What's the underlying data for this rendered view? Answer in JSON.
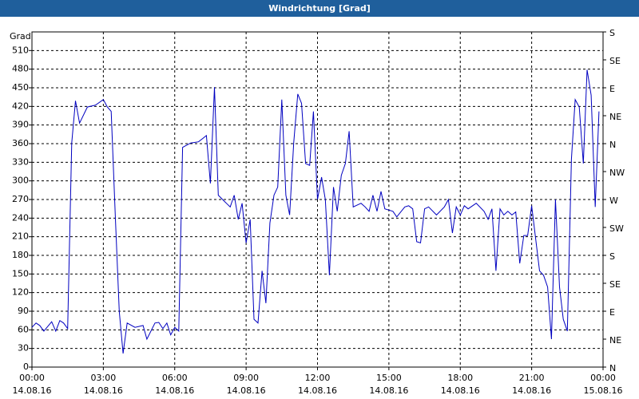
{
  "chart_data": {
    "type": "line",
    "title": "Windrichtung [Grad]",
    "y_label": "Grad",
    "x": [
      0,
      0.17,
      0.33,
      0.5,
      0.83,
      1.0,
      1.17,
      1.33,
      1.5,
      1.67,
      1.83,
      2.0,
      2.33,
      2.67,
      3.0,
      3.17,
      3.33,
      3.5,
      3.67,
      3.83,
      4.0,
      4.33,
      4.67,
      4.83,
      5.17,
      5.33,
      5.5,
      5.67,
      5.83,
      6.0,
      6.17,
      6.33,
      6.67,
      7.0,
      7.33,
      7.5,
      7.67,
      7.83,
      8.17,
      8.33,
      8.5,
      8.67,
      8.83,
      9.0,
      9.17,
      9.33,
      9.5,
      9.67,
      9.83,
      10.0,
      10.17,
      10.33,
      10.5,
      10.67,
      10.83,
      11.0,
      11.17,
      11.33,
      11.5,
      11.67,
      11.83,
      12.0,
      12.17,
      12.33,
      12.5,
      12.67,
      12.83,
      13.0,
      13.17,
      13.33,
      13.5,
      13.83,
      14.0,
      14.17,
      14.33,
      14.5,
      14.67,
      14.83,
      15.17,
      15.33,
      15.67,
      15.83,
      16.0,
      16.17,
      16.33,
      16.5,
      16.67,
      17.0,
      17.33,
      17.5,
      17.67,
      17.83,
      18.0,
      18.17,
      18.33,
      18.67,
      19.0,
      19.17,
      19.33,
      19.5,
      19.67,
      19.83,
      20.0,
      20.17,
      20.33,
      20.5,
      20.67,
      20.83,
      21.0,
      21.33,
      21.5,
      21.67,
      21.83,
      22.0,
      22.17,
      22.33,
      22.5,
      22.67,
      22.83,
      23.0,
      23.17,
      23.33,
      23.5,
      23.67,
      23.83
    ],
    "series": [
      {
        "name": "Windrichtung",
        "color": "#0000c0",
        "values": [
          64,
          71,
          67,
          58,
          73,
          58,
          75,
          71,
          62,
          361,
          429,
          393,
          419,
          422,
          431,
          419,
          412,
          245,
          90,
          22,
          71,
          64,
          67,
          45,
          71,
          72,
          62,
          71,
          52,
          64,
          58,
          354,
          361,
          363,
          373,
          296,
          451,
          277,
          264,
          258,
          277,
          238,
          264,
          200,
          238,
          77,
          71,
          155,
          103,
          232,
          277,
          290,
          431,
          277,
          245,
          361,
          440,
          425,
          328,
          325,
          412,
          270,
          306,
          270,
          148,
          290,
          251,
          309,
          328,
          380,
          258,
          264,
          258,
          251,
          277,
          251,
          283,
          255,
          251,
          242,
          258,
          260,
          255,
          202,
          200,
          255,
          258,
          245,
          258,
          270,
          216,
          258,
          245,
          260,
          255,
          264,
          251,
          238,
          255,
          155,
          255,
          245,
          251,
          245,
          250,
          167,
          212,
          212,
          260,
          155,
          148,
          129,
          45,
          270,
          129,
          77,
          58,
          335,
          431,
          419,
          328,
          479,
          438,
          258,
          412
        ]
      }
    ],
    "xlim": [
      0,
      24
    ],
    "xticks": [
      {
        "value": 0,
        "label": "00:00"
      },
      {
        "value": 3,
        "label": "03:00"
      },
      {
        "value": 6,
        "label": "06:00"
      },
      {
        "value": 9,
        "label": "09:00"
      },
      {
        "value": 12,
        "label": "12:00"
      },
      {
        "value": 15,
        "label": "15:00"
      },
      {
        "value": 18,
        "label": "18:00"
      },
      {
        "value": 21,
        "label": "21:00"
      },
      {
        "value": 24,
        "label": "00:00"
      }
    ],
    "xtick_dates": [
      "14.08.16",
      "14.08.16",
      "14.08.16",
      "14.08.16",
      "14.08.16",
      "14.08.16",
      "14.08.16",
      "14.08.16",
      "15.08.16"
    ],
    "ylim": [
      0,
      540
    ],
    "yticks": [
      0,
      30,
      60,
      90,
      120,
      150,
      180,
      210,
      240,
      270,
      300,
      330,
      360,
      390,
      420,
      450,
      480,
      510
    ],
    "y2lim": [
      0,
      540
    ],
    "y2ticks": [
      {
        "value": 0,
        "label": "N"
      },
      {
        "value": 45,
        "label": "NE"
      },
      {
        "value": 90,
        "label": "E"
      },
      {
        "value": 135,
        "label": "SE"
      },
      {
        "value": 180,
        "label": "S"
      },
      {
        "value": 225,
        "label": "SW"
      },
      {
        "value": 270,
        "label": "W"
      },
      {
        "value": 315,
        "label": "NW"
      },
      {
        "value": 360,
        "label": "N"
      },
      {
        "value": 405,
        "label": "NE"
      },
      {
        "value": 450,
        "label": "E"
      },
      {
        "value": 495,
        "label": "SE"
      },
      {
        "value": 540,
        "label": "S"
      }
    ],
    "grid": true
  }
}
